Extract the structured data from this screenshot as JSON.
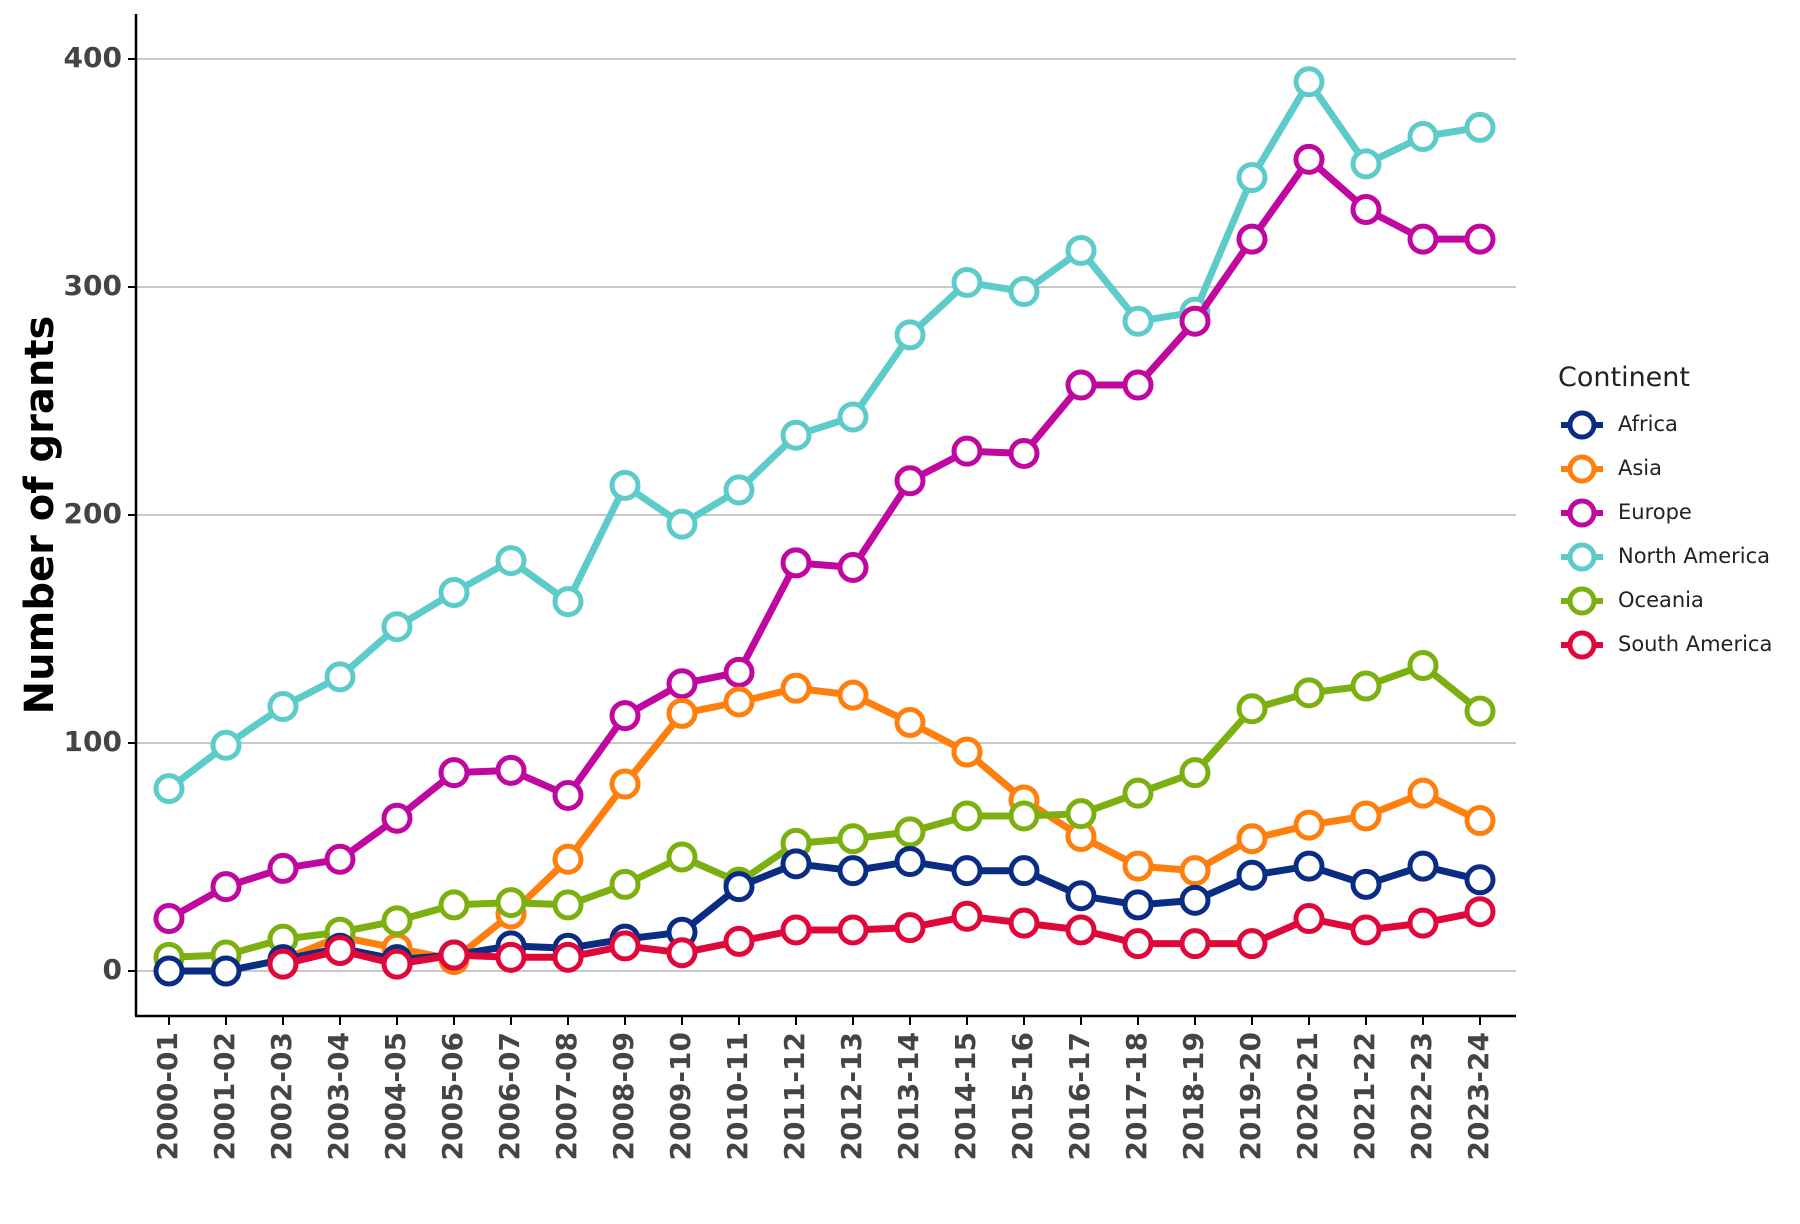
{
  "chart_data": {
    "type": "line",
    "title": "",
    "xlabel": "",
    "ylabel": "Number of grants",
    "ylim": [
      -20,
      420
    ],
    "yticks": [
      0,
      100,
      200,
      300,
      400
    ],
    "grid": "horizontal",
    "legend_title": "Continent",
    "legend_position": "right",
    "categories": [
      "2000-01",
      "2001-02",
      "2002-03",
      "2003-04",
      "2004-05",
      "2005-06",
      "2006-07",
      "2007-08",
      "2008-09",
      "2009-10",
      "2010-11",
      "2011-12",
      "2012-13",
      "2013-14",
      "2014-15",
      "2015-16",
      "2016-17",
      "2017-18",
      "2018-19",
      "2019-20",
      "2020-21",
      "2021-22",
      "2022-23",
      "2023-24"
    ],
    "series": [
      {
        "name": "Africa",
        "color": "#0a2d84",
        "values": [
          0,
          0,
          5,
          10,
          5,
          7,
          11,
          10,
          14,
          17,
          37,
          47,
          44,
          48,
          44,
          44,
          33,
          29,
          31,
          42,
          46,
          38,
          46,
          40
        ]
      },
      {
        "name": "Asia",
        "color": "#ff7f0e",
        "values": [
          null,
          null,
          5,
          15,
          10,
          5,
          25,
          49,
          82,
          113,
          118,
          124,
          121,
          109,
          96,
          75,
          59,
          46,
          44,
          58,
          64,
          68,
          78,
          66
        ]
      },
      {
        "name": "Europe",
        "color": "#c0079f",
        "values": [
          23,
          37,
          45,
          49,
          67,
          87,
          88,
          77,
          112,
          126,
          131,
          179,
          177,
          215,
          228,
          227,
          257,
          257,
          285,
          321,
          356,
          334,
          321,
          321
        ]
      },
      {
        "name": "North America",
        "color": "#5ecbcb",
        "values": [
          80,
          99,
          116,
          129,
          151,
          166,
          180,
          162,
          213,
          196,
          211,
          235,
          243,
          279,
          302,
          298,
          316,
          285,
          289,
          348,
          390,
          354,
          366,
          370
        ]
      },
      {
        "name": "Oceania",
        "color": "#7cb010",
        "values": [
          6,
          7,
          14,
          17,
          22,
          29,
          30,
          29,
          38,
          50,
          39,
          56,
          58,
          61,
          68,
          68,
          69,
          78,
          87,
          115,
          122,
          125,
          134,
          114
        ]
      },
      {
        "name": "South America",
        "color": "#e0073a",
        "values": [
          null,
          null,
          3,
          9,
          3,
          7,
          6,
          6,
          11,
          8,
          13,
          18,
          18,
          19,
          24,
          21,
          18,
          12,
          12,
          12,
          23,
          18,
          21,
          26
        ]
      }
    ]
  }
}
